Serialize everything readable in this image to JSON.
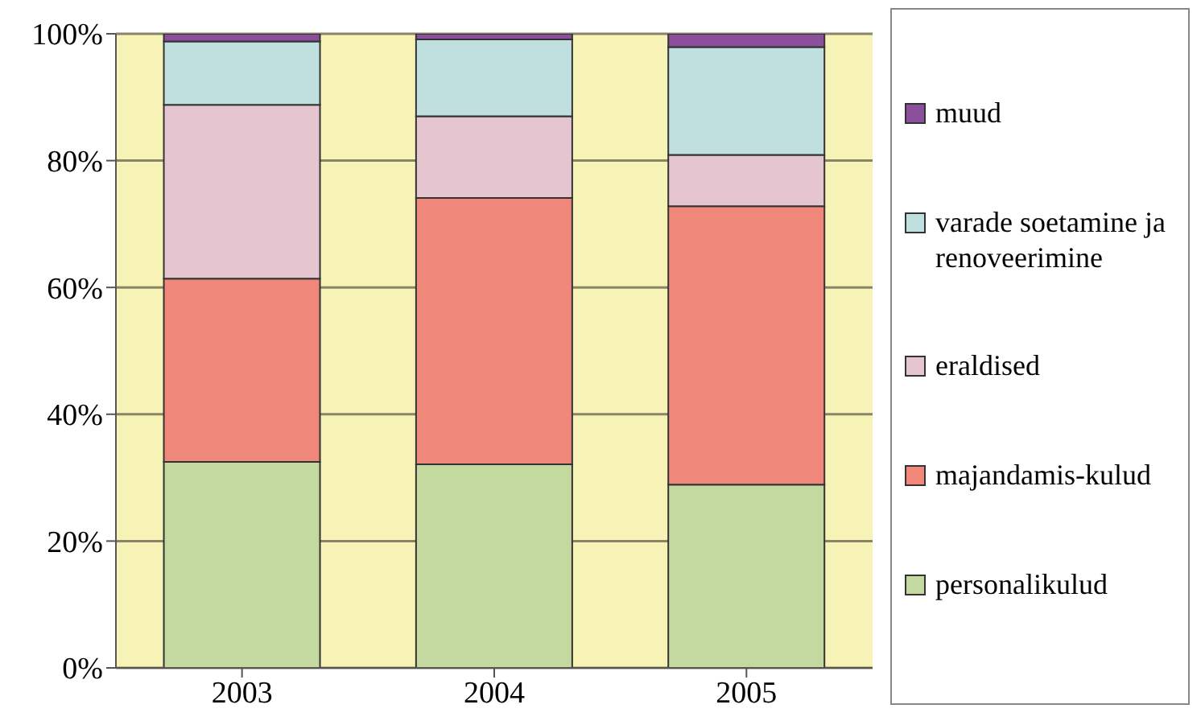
{
  "chart_data": {
    "type": "bar",
    "stacked": true,
    "categories": [
      "2003",
      "2004",
      "2005"
    ],
    "series": [
      {
        "name": "personalikulud",
        "color": "#c4d9a0",
        "values": [
          32.5,
          32.1,
          28.9
        ]
      },
      {
        "name": "majandamis-kulud",
        "color": "#ef887a",
        "values": [
          28.9,
          42.0,
          43.9
        ]
      },
      {
        "name": "eraldised",
        "color": "#e5c5d0",
        "values": [
          27.4,
          12.9,
          8.1
        ]
      },
      {
        "name": "varade soetamine ja renoveerimine",
        "color": "#bfe0df",
        "values": [
          10.0,
          12.1,
          17.0
        ]
      },
      {
        "name": "muud",
        "color": "#8b4f9b",
        "values": [
          1.2,
          0.9,
          2.1
        ]
      }
    ],
    "ylim": [
      0,
      100
    ],
    "yticks": [
      {
        "value": 0,
        "label": "0%"
      },
      {
        "value": 20,
        "label": "20%"
      },
      {
        "value": 40,
        "label": "40%"
      },
      {
        "value": 60,
        "label": "60%"
      },
      {
        "value": 80,
        "label": "80%"
      },
      {
        "value": 100,
        "label": "100%"
      }
    ],
    "grid": "y",
    "legend": "right"
  }
}
